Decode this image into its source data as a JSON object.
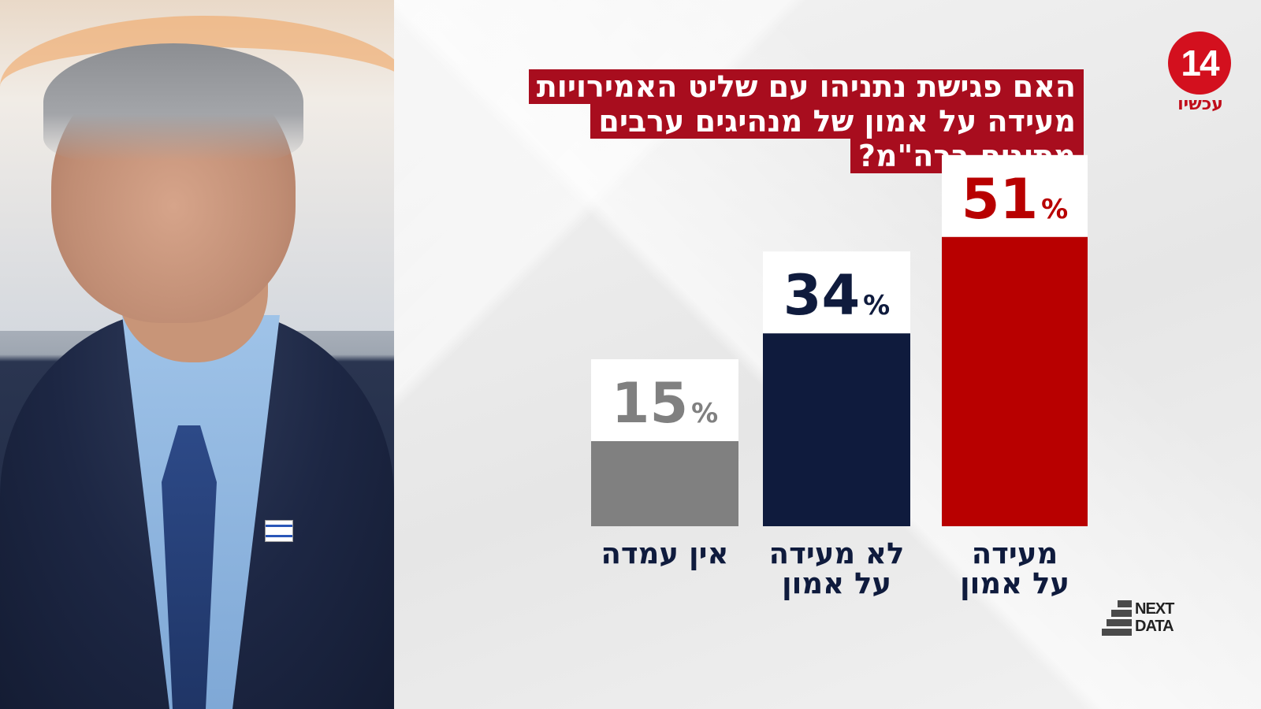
{
  "title": {
    "lines": [
      "האם פגישת נתניהו עם שליט האמירויות",
      "מעידה על אמון של מנהיגים ערבים",
      "מתונים ברה\"מ?"
    ]
  },
  "logo": {
    "number": "14",
    "text": "עכשיו"
  },
  "brand": {
    "line1": "NEXT",
    "line2": "DATA"
  },
  "colors": {
    "accent": "#a80d1e"
  },
  "chart_data": {
    "type": "bar",
    "title": "האם פגישת נתניהו עם שליט האמירויות מעידה על אמון של מנהיגים ערבים מתונים ברה\"מ?",
    "categories": [
      "מעידה על אמון",
      "לא מעידה על אמון",
      "אין עמדה"
    ],
    "category_lines": [
      [
        "מעידה",
        "על אמון"
      ],
      [
        "לא מעידה",
        "על אמון"
      ],
      [
        "אין עמדה"
      ]
    ],
    "values": [
      51,
      34,
      15
    ],
    "value_labels": [
      "51",
      "34",
      "15"
    ],
    "unit": "%",
    "colors": [
      "#b80000",
      "#0f1b3d",
      "#808080"
    ],
    "label_colors": [
      "#b80000",
      "#0f1b3d",
      "#808080"
    ],
    "ylim": [
      0,
      100
    ],
    "grid": false,
    "legend": "none"
  }
}
